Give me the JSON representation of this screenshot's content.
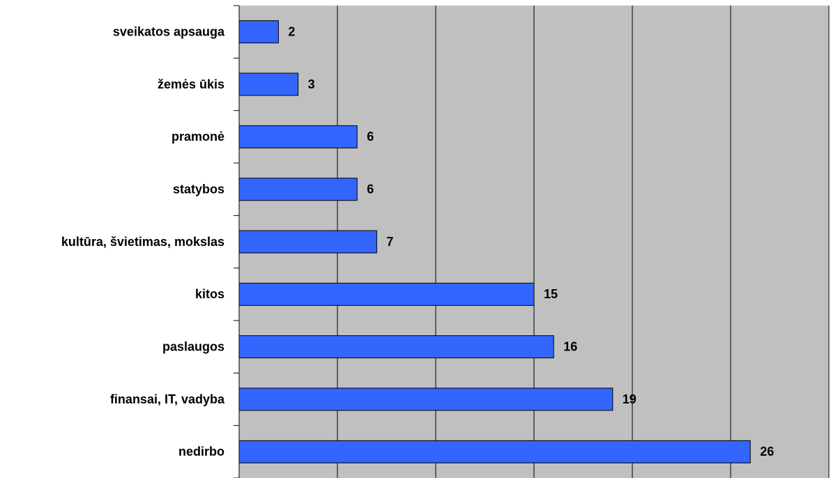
{
  "chart_data": {
    "type": "bar",
    "orientation": "horizontal",
    "categories": [
      "sveikatos apsauga",
      "žemės ūkis",
      "pramonė",
      "statybos",
      "kultūra, švietimas, mokslas",
      "kitos",
      "paslaugos",
      "finansai, IT, vadyba",
      "nedirbo"
    ],
    "values": [
      2,
      3,
      6,
      6,
      7,
      15,
      16,
      19,
      26
    ],
    "color": "#3366ff",
    "xlim": [
      0,
      30
    ],
    "xticks": [
      0,
      5,
      10,
      15,
      20,
      25,
      30
    ],
    "grid": true
  }
}
